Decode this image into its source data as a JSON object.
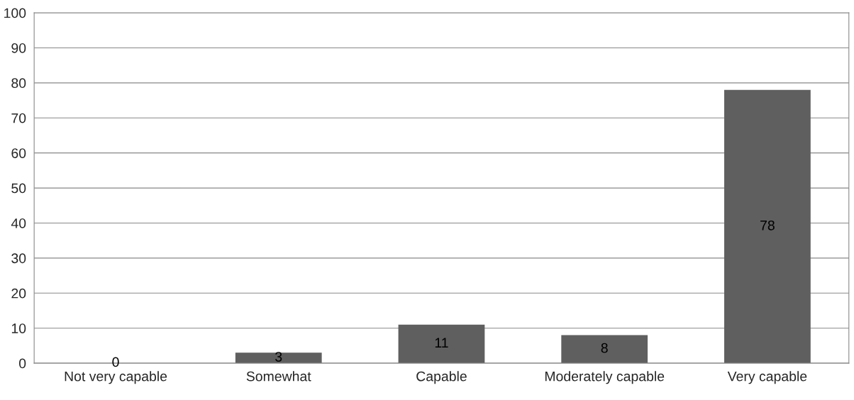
{
  "chart_data": {
    "type": "bar",
    "categories": [
      "Not very capable",
      "Somewhat",
      "Capable",
      "Moderately capable",
      "Very capable"
    ],
    "values": [
      0,
      3,
      11,
      8,
      78
    ],
    "color": "#5f5f5f",
    "ylim": [
      0,
      100
    ],
    "yticks": [
      0,
      10,
      20,
      30,
      40,
      50,
      60,
      70,
      80,
      90,
      100
    ],
    "grid": "y",
    "data_labels": true,
    "legend": false
  }
}
